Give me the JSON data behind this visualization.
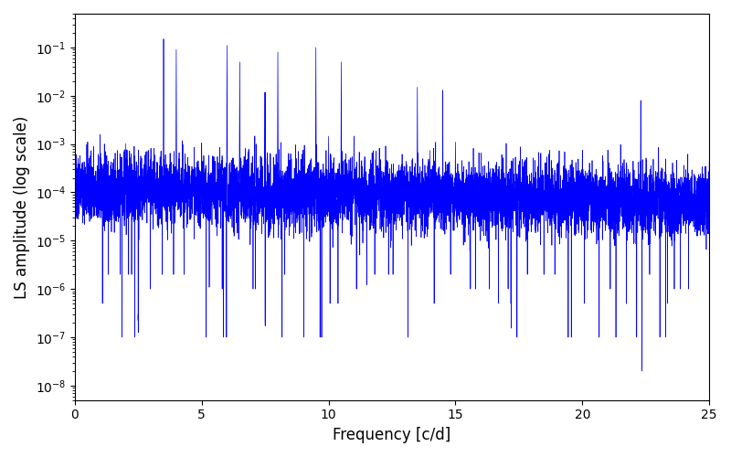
{
  "title": "",
  "xlabel": "Frequency [c/d]",
  "ylabel": "LS amplitude (log scale)",
  "xlim": [
    0,
    25
  ],
  "ylim": [
    5e-09,
    0.5
  ],
  "line_color": "#0000FF",
  "background_color": "#ffffff",
  "figsize": [
    8.0,
    5.0
  ],
  "dpi": 100,
  "freq_min": 0.0,
  "freq_max": 25.0,
  "n_points": 8000,
  "seed": 137
}
